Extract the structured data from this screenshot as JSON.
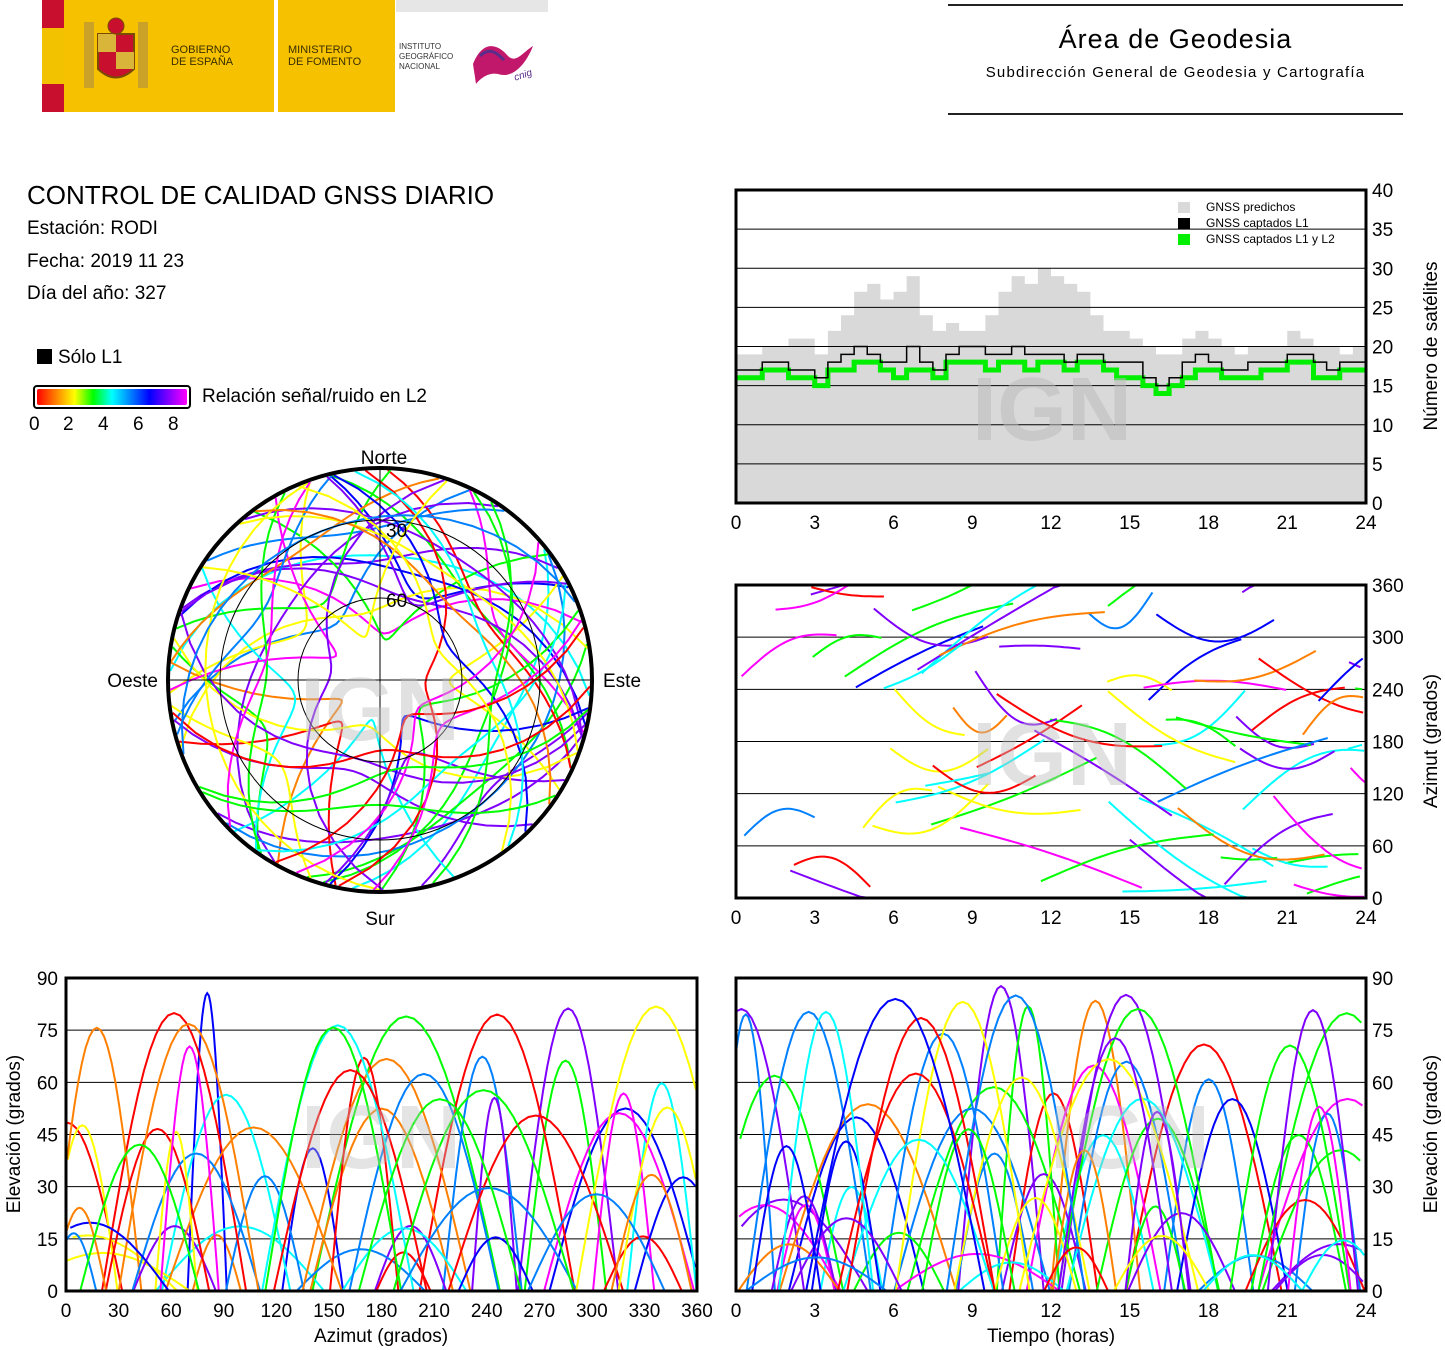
{
  "header": {
    "gov_line1": "GOBIERNO",
    "gov_line2": "DE ESPAÑA",
    "min_line1": "MINISTERIO",
    "min_line2": "DE FOMENTO",
    "ign_line1": "INSTITUTO",
    "ign_line2": "GEOGRÁFICO",
    "ign_line3": "NACIONAL",
    "cnig": "cnig",
    "area_title": "Área de Geodesia",
    "area_subtitle": "Subdirección General de Geodesia y Cartografía"
  },
  "report": {
    "title": "CONTROL DE CALIDAD GNSS DIARIO",
    "station": "Estación: RODI",
    "date": "Fecha: 2019 11 23",
    "doy": "Día del año: 327"
  },
  "legend": {
    "only_l1": "Sólo L1",
    "snr_label": "Relación señal/ruido en L2",
    "snr_ticks": [
      "0",
      "2",
      "4",
      "6",
      "8"
    ],
    "colors": [
      "#ff0000",
      "#ff8000",
      "#ffff00",
      "#00ff00",
      "#00ffff",
      "#0080ff",
      "#0000ff",
      "#8000ff",
      "#ff00ff"
    ]
  },
  "watermark": "IGN",
  "chart_data": [
    {
      "id": "satellites",
      "type": "area",
      "ylabel": "Número de satélites",
      "xlim": [
        0,
        24
      ],
      "ylim": [
        0,
        40
      ],
      "x_ticks": [
        "0",
        "3",
        "6",
        "9",
        "12",
        "15",
        "18",
        "21",
        "24"
      ],
      "y_ticks": [
        "0",
        "5",
        "10",
        "15",
        "20",
        "25",
        "30",
        "35",
        "40"
      ],
      "grid": true,
      "legend_position": "top-right",
      "series": [
        {
          "name": "GNSS predichos",
          "color": "#d9d9d9",
          "x": [
            0,
            1,
            2,
            3,
            3.5,
            4,
            4.5,
            5,
            5.5,
            6,
            6.5,
            7,
            7.5,
            8,
            8.5,
            9,
            9.5,
            10,
            10.5,
            11,
            11.5,
            12,
            12.5,
            13,
            13.5,
            14,
            14.5,
            15,
            15.5,
            16,
            16.5,
            17,
            17.5,
            18,
            18.5,
            19,
            19.5,
            20,
            20.5,
            21,
            21.5,
            22,
            22.5,
            23,
            23.5,
            24
          ],
          "values": [
            19,
            20,
            21,
            19,
            22,
            24,
            27,
            28,
            26,
            27,
            29,
            24,
            22,
            23,
            22,
            22,
            24,
            27,
            29,
            28,
            30,
            29,
            28,
            27,
            24,
            22,
            22,
            21,
            20,
            19,
            19,
            21,
            22,
            21,
            20,
            19,
            20,
            20,
            20,
            22,
            21,
            20,
            20,
            19,
            20,
            20
          ]
        },
        {
          "name": "GNSS captados L1",
          "color": "#000000",
          "x": [
            0,
            1,
            2,
            3,
            3.5,
            4,
            4.5,
            5,
            5.5,
            6,
            6.5,
            7,
            7.5,
            8,
            8.5,
            9,
            9.5,
            10,
            10.5,
            11,
            11.5,
            12,
            12.5,
            13,
            13.5,
            14,
            14.5,
            15,
            15.5,
            16,
            16.5,
            17,
            17.5,
            18,
            18.5,
            19,
            19.5,
            20,
            20.5,
            21,
            21.5,
            22,
            22.5,
            23,
            23.5,
            24
          ],
          "values": [
            17,
            18,
            17,
            16,
            18,
            19,
            20,
            19,
            18,
            18,
            20,
            18,
            17,
            19,
            20,
            20,
            19,
            19,
            20,
            19,
            19,
            19,
            18,
            19,
            19,
            18,
            18,
            18,
            16,
            15,
            16,
            18,
            19,
            18,
            17,
            17,
            18,
            18,
            18,
            19,
            19,
            18,
            17,
            18,
            18,
            18
          ]
        },
        {
          "name": "GNSS captados L1 y L2",
          "color": "#00ee00",
          "x": [
            0,
            1,
            2,
            3,
            3.5,
            4,
            4.5,
            5,
            5.5,
            6,
            6.5,
            7,
            7.5,
            8,
            8.5,
            9,
            9.5,
            10,
            10.5,
            11,
            11.5,
            12,
            12.5,
            13,
            13.5,
            14,
            14.5,
            15,
            15.5,
            16,
            16.5,
            17,
            17.5,
            18,
            18.5,
            19,
            19.5,
            20,
            20.5,
            21,
            21.5,
            22,
            22.5,
            23,
            23.5,
            24
          ],
          "values": [
            16,
            17,
            16,
            15,
            17,
            17,
            18,
            18,
            17,
            16,
            17,
            17,
            16,
            18,
            18,
            18,
            17,
            18,
            18,
            17,
            18,
            18,
            17,
            18,
            18,
            17,
            16,
            16,
            15,
            14,
            15,
            16,
            17,
            17,
            16,
            16,
            16,
            17,
            17,
            18,
            18,
            16,
            16,
            17,
            17,
            17
          ]
        }
      ]
    },
    {
      "id": "azimuth-time",
      "type": "scatter",
      "ylabel": "Azimut (grados)",
      "xlim": [
        0,
        24
      ],
      "ylim": [
        0,
        360
      ],
      "x_ticks": [
        "0",
        "3",
        "6",
        "9",
        "12",
        "15",
        "18",
        "21",
        "24"
      ],
      "y_ticks": [
        "0",
        "60",
        "120",
        "180",
        "240",
        "300",
        "360"
      ],
      "grid": true
    },
    {
      "id": "skyplot",
      "type": "scatter",
      "labels": {
        "north": "Norte",
        "south": "Sur",
        "west": "Oeste",
        "east": "Este"
      },
      "rings": [
        "30",
        "60"
      ]
    },
    {
      "id": "elevation-azimuth",
      "type": "scatter",
      "xlabel": "Azimut (grados)",
      "ylabel": "Elevación (grados)",
      "xlim": [
        0,
        360
      ],
      "ylim": [
        0,
        90
      ],
      "x_ticks": [
        "0",
        "30",
        "60",
        "90",
        "120",
        "150",
        "180",
        "210",
        "240",
        "270",
        "300",
        "330",
        "360"
      ],
      "y_ticks": [
        "0",
        "15",
        "30",
        "45",
        "60",
        "75",
        "90"
      ],
      "grid": true
    },
    {
      "id": "elevation-time",
      "type": "line",
      "xlabel": "Tiempo (horas)",
      "ylabel": "Elevación (grados)",
      "xlim": [
        0,
        24
      ],
      "ylim": [
        0,
        90
      ],
      "x_ticks": [
        "0",
        "3",
        "6",
        "9",
        "12",
        "15",
        "18",
        "21",
        "24"
      ],
      "y_ticks": [
        "0",
        "15",
        "30",
        "45",
        "60",
        "75",
        "90"
      ],
      "grid": true
    }
  ]
}
